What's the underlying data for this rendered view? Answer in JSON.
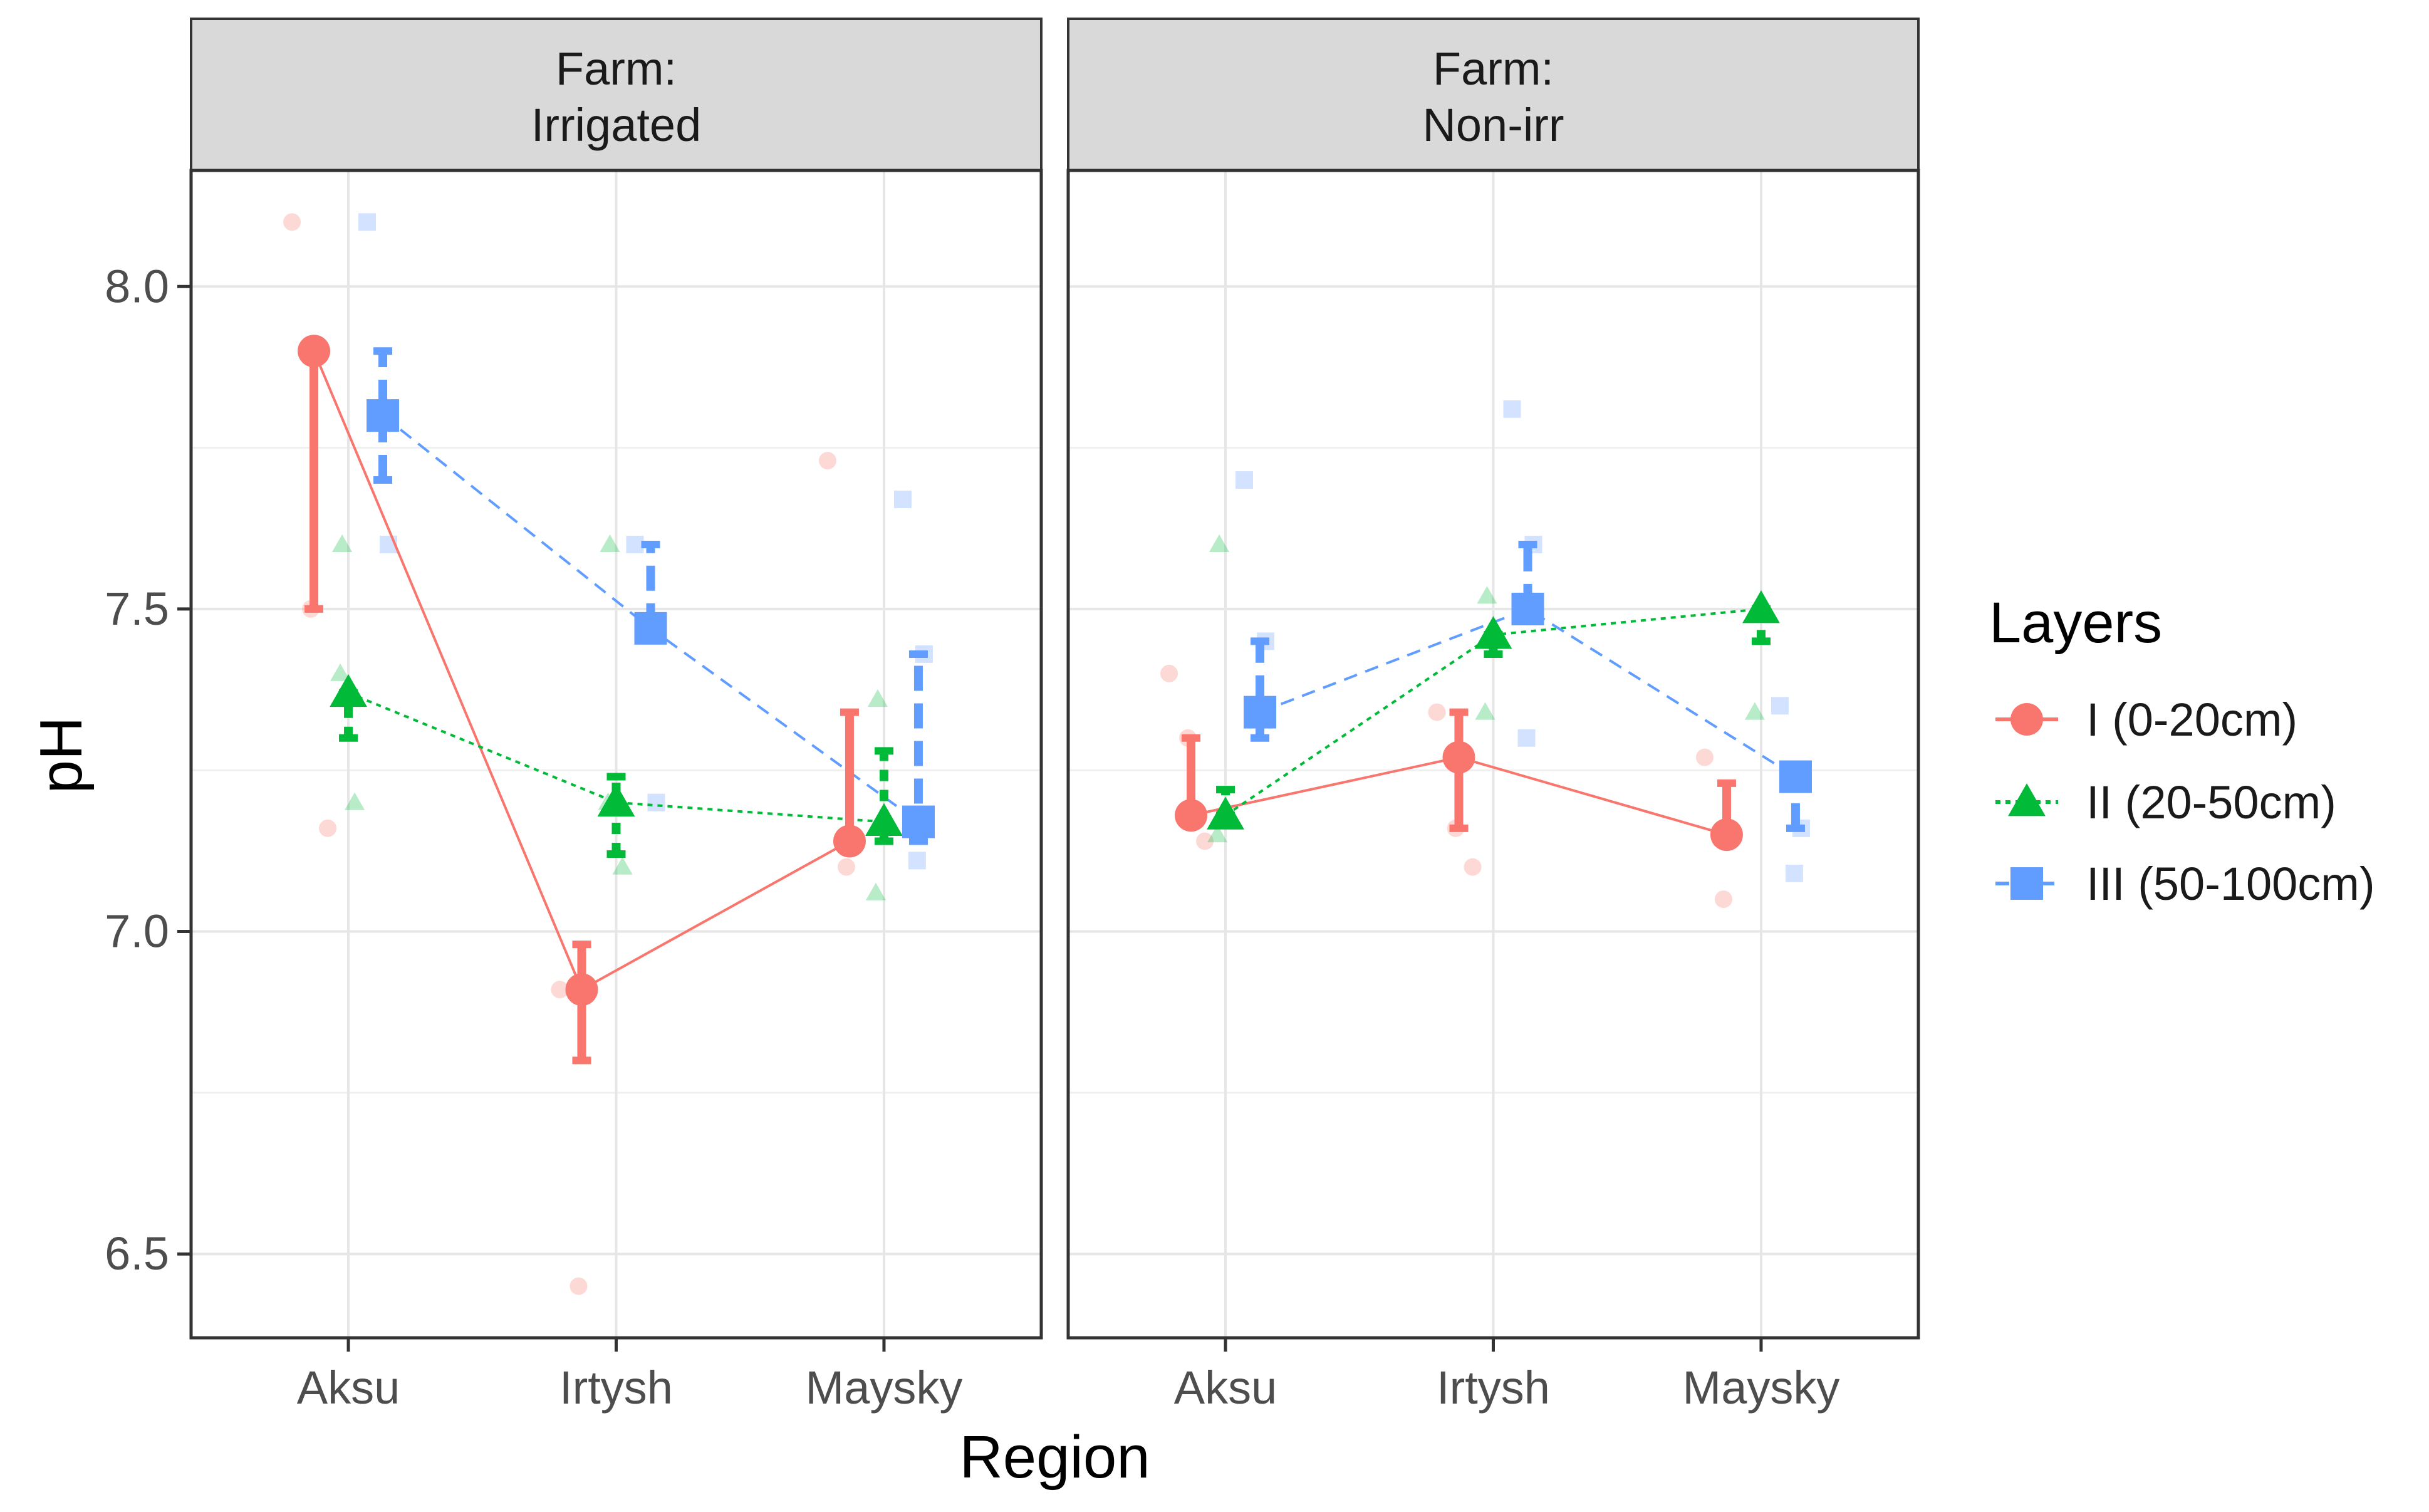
{
  "chart_data": {
    "type": "point",
    "x_title": "Region",
    "y_title": "pH",
    "legend_title": "Layers",
    "legend_position": "right",
    "ylim": [
      6.37,
      8.18
    ],
    "y_ticks": [
      6.5,
      7.0,
      7.5,
      8.0
    ],
    "y_tick_labels": [
      "6.5",
      "7.0",
      "7.5",
      "8.0"
    ],
    "categories": [
      "Aksu",
      "Irtysh",
      "Maysky"
    ],
    "panels": [
      {
        "strip_title": "Farm:",
        "strip_subtitle": "Irrigated",
        "series": [
          {
            "name": "I (0-20cm)",
            "color": "#F8766D",
            "shape": "circle",
            "line": "solid",
            "means": [
              7.9,
              6.91,
              7.14
            ],
            "err_low": [
              7.5,
              6.8,
              7.14
            ],
            "err_high": [
              7.9,
              6.98,
              7.34
            ],
            "raw": [
              [
                8.1,
                7.5,
                7.16
              ],
              [
                6.91,
                6.45
              ],
              [
                7.73,
                7.1
              ]
            ]
          },
          {
            "name": "II (20-50cm)",
            "color": "#00BA38",
            "shape": "triangle",
            "line": "dotted",
            "means": [
              7.37,
              7.2,
              7.17
            ],
            "err_low": [
              7.3,
              7.12,
              7.14
            ],
            "err_high": [
              7.37,
              7.24,
              7.28
            ],
            "raw": [
              [
                7.6,
                7.4,
                7.2
              ],
              [
                7.6,
                7.2,
                7.1
              ],
              [
                7.36,
                7.06
              ]
            ]
          },
          {
            "name": "III (50-100cm)",
            "color": "#619CFF",
            "shape": "square",
            "line": "dashed",
            "means": [
              7.8,
              7.47,
              7.17
            ],
            "err_low": [
              7.7,
              7.47,
              7.14
            ],
            "err_high": [
              7.9,
              7.6,
              7.43
            ],
            "raw": [
              [
                8.1,
                7.6,
                7.8
              ],
              [
                7.6,
                7.2
              ],
              [
                7.67,
                7.43,
                7.11
              ]
            ]
          }
        ]
      },
      {
        "strip_title": "Farm:",
        "strip_subtitle": "Non-irr",
        "series": [
          {
            "name": "I (0-20cm)",
            "color": "#F8766D",
            "shape": "circle",
            "line": "solid",
            "means": [
              7.18,
              7.27,
              7.15
            ],
            "err_low": [
              7.18,
              7.16,
              7.15
            ],
            "err_high": [
              7.3,
              7.34,
              7.23
            ],
            "raw": [
              [
                7.4,
                7.3,
                7.14
              ],
              [
                7.34,
                7.16,
                7.1
              ],
              [
                7.27,
                7.05
              ]
            ]
          },
          {
            "name": "II (20-50cm)",
            "color": "#00BA38",
            "shape": "triangle",
            "line": "dotted",
            "means": [
              7.18,
              7.46,
              7.5
            ],
            "err_low": [
              7.18,
              7.43,
              7.45
            ],
            "err_high": [
              7.22,
              7.46,
              7.5
            ],
            "raw": [
              [
                7.6,
                7.15
              ],
              [
                7.52,
                7.34
              ],
              [
                7.34
              ]
            ]
          },
          {
            "name": "III (50-100cm)",
            "color": "#619CFF",
            "shape": "square",
            "line": "dashed",
            "means": [
              7.34,
              7.5,
              7.24
            ],
            "err_low": [
              7.3,
              7.5,
              7.16
            ],
            "err_high": [
              7.45,
              7.6,
              7.24
            ],
            "raw": [
              [
                7.7,
                7.45
              ],
              [
                7.81,
                7.6,
                7.3
              ],
              [
                7.35,
                7.16,
                7.09
              ]
            ]
          }
        ]
      }
    ]
  }
}
